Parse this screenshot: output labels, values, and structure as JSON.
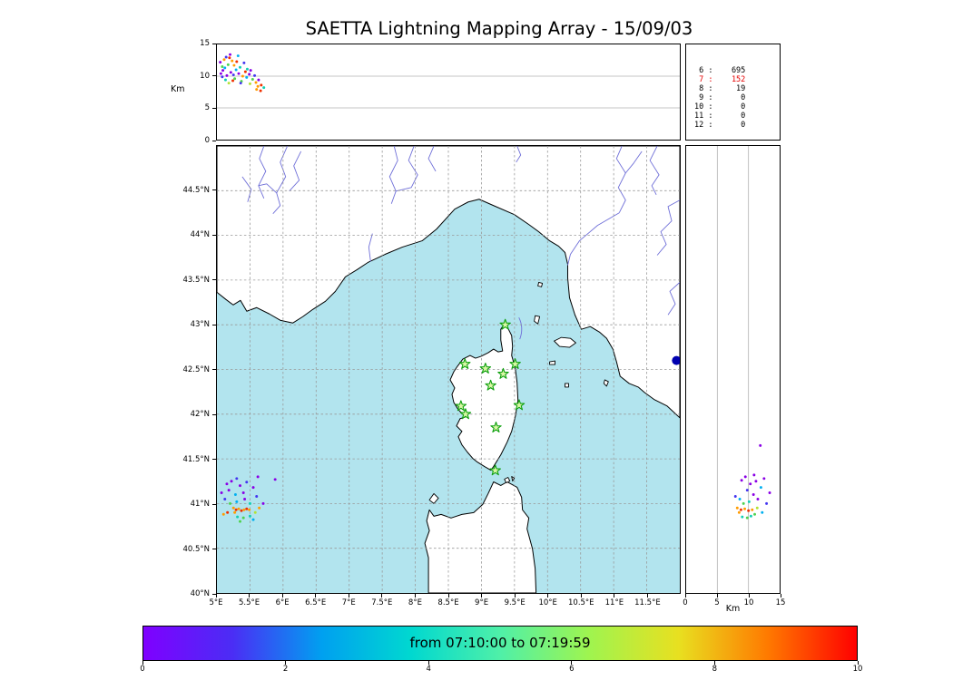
{
  "title": "SAETTA Lightning Mapping Array - 15/09/03",
  "labels": {
    "top_km": "Km",
    "right_km": "Km"
  },
  "palette": [
    "#8a00e6",
    "#4436f0",
    "#00b0f0",
    "#12cfb4",
    "#4fd24f",
    "#b2e334",
    "#ff9d00",
    "#f03000"
  ],
  "stats_panel": {
    "rows": [
      [
        "6",
        "695"
      ],
      [
        "7",
        "152"
      ],
      [
        "8",
        "19"
      ],
      [
        "9",
        "0"
      ],
      [
        "10",
        "0"
      ],
      [
        "11",
        "0"
      ],
      [
        "12",
        "0"
      ]
    ],
    "highlight_index": 1,
    "highlight_color": "#e60000"
  },
  "colorbar": {
    "label": "from 07:10:00 to 07:19:59",
    "range": [
      0,
      10
    ],
    "ticks": [
      [
        0,
        "0"
      ],
      [
        2,
        "2"
      ],
      [
        4,
        "4"
      ],
      [
        6,
        "6"
      ],
      [
        8,
        "8"
      ],
      [
        10,
        "10"
      ]
    ],
    "gradient": [
      "#7f00ff",
      "#4b2df5",
      "#00a0f0",
      "#00d8d0",
      "#4ff0a8",
      "#9ff44f",
      "#e8e020",
      "#ff7a00",
      "#ff0000"
    ]
  },
  "chart_data": [
    {
      "id": "alt_vs_lon",
      "type": "scatter",
      "ylabel": "Km",
      "xlim": [
        5,
        12
      ],
      "ylim": [
        0,
        15
      ],
      "yticks": [
        [
          15,
          "15"
        ],
        [
          10,
          "10"
        ],
        [
          5,
          "5"
        ],
        [
          0,
          "0"
        ]
      ],
      "points": [
        [
          5.06,
          10.4,
          0
        ],
        [
          5.09,
          10.9,
          0
        ],
        [
          5.08,
          9.9,
          1
        ],
        [
          5.12,
          11.3,
          2
        ],
        [
          5.15,
          10.1,
          0
        ],
        [
          5.11,
          12.6,
          6
        ],
        [
          5.19,
          12.9,
          7
        ],
        [
          5.23,
          12.4,
          6
        ],
        [
          5.17,
          11.8,
          4
        ],
        [
          5.21,
          10.6,
          0
        ],
        [
          5.25,
          10.2,
          1
        ],
        [
          5.29,
          11.0,
          2
        ],
        [
          5.27,
          9.6,
          4
        ],
        [
          5.33,
          10.4,
          0
        ],
        [
          5.35,
          11.4,
          3
        ],
        [
          5.39,
          10.0,
          6
        ],
        [
          5.37,
          9.2,
          4
        ],
        [
          5.43,
          10.7,
          7
        ],
        [
          5.45,
          9.8,
          2
        ],
        [
          5.49,
          10.3,
          0
        ],
        [
          5.41,
          12.1,
          1
        ],
        [
          5.54,
          9.5,
          4
        ],
        [
          5.59,
          9.0,
          6
        ],
        [
          5.62,
          8.4,
          6
        ],
        [
          5.67,
          8.6,
          7
        ],
        [
          5.51,
          10.9,
          0
        ],
        [
          5.32,
          13.2,
          2
        ],
        [
          5.2,
          13.4,
          0
        ],
        [
          5.14,
          13.0,
          1
        ],
        [
          5.05,
          12.2,
          0
        ],
        [
          5.08,
          11.5,
          4
        ],
        [
          5.26,
          11.7,
          6
        ],
        [
          5.3,
          12.3,
          7
        ],
        [
          5.46,
          11.1,
          3
        ],
        [
          5.57,
          10.1,
          1
        ],
        [
          5.63,
          9.4,
          0
        ],
        [
          5.71,
          8.2,
          3
        ],
        [
          5.5,
          8.8,
          5
        ],
        [
          5.36,
          8.9,
          1
        ],
        [
          5.24,
          9.3,
          7
        ],
        [
          5.6,
          7.9,
          6
        ],
        [
          5.66,
          7.7,
          7
        ],
        [
          5.13,
          9.4,
          3
        ],
        [
          5.18,
          8.9,
          5
        ]
      ]
    },
    {
      "id": "map",
      "type": "scatter",
      "xlim": [
        5,
        12
      ],
      "ylim": [
        40,
        45
      ],
      "xticks": [
        [
          5,
          "5°E"
        ],
        [
          5.5,
          "5.5°E"
        ],
        [
          6,
          "6°E"
        ],
        [
          6.5,
          "6.5°E"
        ],
        [
          7,
          "7°E"
        ],
        [
          7.5,
          "7.5°E"
        ],
        [
          8,
          "8°E"
        ],
        [
          8.5,
          "8.5°E"
        ],
        [
          9,
          "9°E"
        ],
        [
          9.5,
          "9.5°E"
        ],
        [
          10,
          "10°E"
        ],
        [
          10.5,
          "10.5°E"
        ],
        [
          11,
          "11°E"
        ],
        [
          11.5,
          "11.5°E"
        ]
      ],
      "yticks": [
        [
          44.5,
          "44.5°N"
        ],
        [
          44,
          "44°N"
        ],
        [
          43.5,
          "43.5°N"
        ],
        [
          43,
          "43°N"
        ],
        [
          42.5,
          "42.5°N"
        ],
        [
          42,
          "42°N"
        ],
        [
          41.5,
          "41.5°N"
        ],
        [
          41,
          "41°N"
        ],
        [
          40.5,
          "40.5°N"
        ],
        [
          40,
          "40°N"
        ]
      ],
      "stations": [
        [
          9.36,
          43.0
        ],
        [
          8.75,
          42.56
        ],
        [
          9.06,
          42.51
        ],
        [
          9.33,
          42.45
        ],
        [
          9.51,
          42.56
        ],
        [
          9.14,
          42.32
        ],
        [
          8.69,
          42.09
        ],
        [
          8.76,
          42.0
        ],
        [
          9.57,
          42.1
        ],
        [
          9.22,
          41.85
        ],
        [
          9.21,
          41.37
        ]
      ],
      "lake": [
        11.95,
        42.6
      ],
      "points": [
        [
          5.15,
          41.22,
          0
        ],
        [
          5.22,
          41.25,
          0
        ],
        [
          5.3,
          41.28,
          1
        ],
        [
          5.18,
          41.15,
          0
        ],
        [
          5.35,
          41.2,
          0
        ],
        [
          5.45,
          41.24,
          1
        ],
        [
          5.28,
          41.1,
          2
        ],
        [
          5.4,
          41.12,
          0
        ],
        [
          5.55,
          41.18,
          0
        ],
        [
          5.88,
          41.27,
          0
        ],
        [
          5.12,
          41.05,
          1
        ],
        [
          5.2,
          41.0,
          4
        ],
        [
          5.3,
          41.02,
          2
        ],
        [
          5.42,
          41.05,
          0
        ],
        [
          5.5,
          41.0,
          3
        ],
        [
          5.6,
          41.08,
          1
        ],
        [
          5.25,
          40.95,
          6
        ],
        [
          5.29,
          40.93,
          7
        ],
        [
          5.33,
          40.94,
          6
        ],
        [
          5.37,
          40.92,
          7
        ],
        [
          5.41,
          40.93,
          6
        ],
        [
          5.45,
          40.94,
          7
        ],
        [
          5.49,
          40.93,
          6
        ],
        [
          5.27,
          40.9,
          6
        ],
        [
          5.31,
          40.85,
          3
        ],
        [
          5.4,
          40.84,
          4
        ],
        [
          5.5,
          40.86,
          3
        ],
        [
          5.35,
          40.8,
          4
        ],
        [
          5.58,
          40.9,
          5
        ],
        [
          5.55,
          40.82,
          2
        ],
        [
          5.64,
          40.95,
          6
        ],
        [
          5.7,
          41.0,
          0
        ],
        [
          5.1,
          40.88,
          6
        ],
        [
          5.16,
          40.9,
          7
        ],
        [
          5.07,
          41.12,
          0
        ],
        [
          5.62,
          41.3,
          0
        ]
      ]
    },
    {
      "id": "alt_vs_lat",
      "type": "scatter",
      "xlabel": "Km",
      "xlim": [
        0,
        15
      ],
      "ylim": [
        40,
        45
      ],
      "xticks": [
        [
          0,
          "0"
        ],
        [
          5,
          "5"
        ],
        [
          10,
          "10"
        ],
        [
          15,
          "15"
        ]
      ],
      "points": [
        [
          10.3,
          41.22,
          0
        ],
        [
          11.2,
          41.25,
          0
        ],
        [
          9.8,
          41.15,
          1
        ],
        [
          12.5,
          41.28,
          0
        ],
        [
          10.8,
          41.1,
          0
        ],
        [
          8.6,
          41.05,
          2
        ],
        [
          9.2,
          41.0,
          4
        ],
        [
          10.1,
          41.02,
          3
        ],
        [
          11.5,
          41.05,
          0
        ],
        [
          12.9,
          41.0,
          1
        ],
        [
          8.2,
          40.95,
          6
        ],
        [
          8.8,
          40.93,
          7
        ],
        [
          9.4,
          40.94,
          6
        ],
        [
          10.0,
          40.92,
          7
        ],
        [
          10.6,
          40.93,
          6
        ],
        [
          8.5,
          40.9,
          6
        ],
        [
          9.0,
          40.85,
          3
        ],
        [
          9.8,
          40.84,
          4
        ],
        [
          10.4,
          40.86,
          3
        ],
        [
          11.0,
          40.88,
          4
        ],
        [
          11.9,
          41.65,
          0
        ],
        [
          12.2,
          40.9,
          2
        ],
        [
          13.4,
          41.12,
          0
        ],
        [
          7.9,
          41.08,
          1
        ],
        [
          11.4,
          40.95,
          5
        ],
        [
          9.5,
          41.3,
          0
        ],
        [
          10.9,
          41.32,
          0
        ],
        [
          12.0,
          41.18,
          2
        ],
        [
          8.9,
          41.26,
          0
        ]
      ]
    },
    {
      "id": "station_counts",
      "type": "table",
      "rows": [
        [
          6,
          695
        ],
        [
          7,
          152
        ],
        [
          8,
          19
        ],
        [
          9,
          0
        ],
        [
          10,
          0
        ],
        [
          11,
          0
        ],
        [
          12,
          0
        ]
      ]
    }
  ]
}
